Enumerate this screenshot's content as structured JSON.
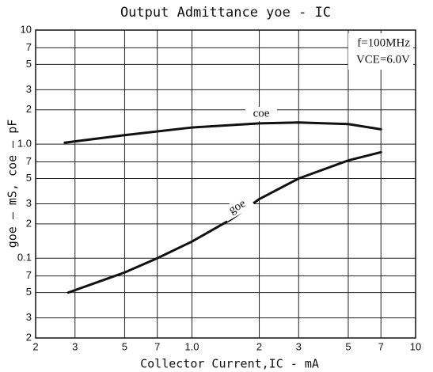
{
  "chart_data": {
    "type": "line",
    "title": "Output Admittance yoe - IC",
    "xlabel": "Collector Current,IC - mA",
    "ylabel": "goe — mS, coe — pF",
    "annotations": [
      "f=100MHz",
      "VCE=6.0V"
    ],
    "xlog": true,
    "ylog": true,
    "grid": true,
    "xlim": [
      0.2,
      10
    ],
    "ylim": [
      0.02,
      10
    ],
    "xticks": [
      {
        "value": 0.2,
        "label": "2"
      },
      {
        "value": 0.3,
        "label": "3"
      },
      {
        "value": 0.5,
        "label": "5"
      },
      {
        "value": 0.7,
        "label": "7"
      },
      {
        "value": 1,
        "label": "1.0"
      },
      2,
      3,
      5,
      7,
      10
    ],
    "yticks": [
      10,
      7,
      5,
      3,
      2,
      {
        "value": 1,
        "label": "1.0"
      },
      {
        "value": 0.7,
        "label": "7"
      },
      {
        "value": 0.5,
        "label": "5"
      },
      {
        "value": 0.3,
        "label": "3"
      },
      {
        "value": 0.2,
        "label": "2"
      },
      {
        "value": 0.1,
        "label": "0.1"
      },
      {
        "value": 0.07,
        "label": "7"
      },
      {
        "value": 0.05,
        "label": "5"
      },
      {
        "value": 0.03,
        "label": "3"
      },
      {
        "value": 0.02,
        "label": "2"
      }
    ],
    "series": [
      {
        "name": "coe",
        "color": "#111111",
        "x": [
          0.27,
          0.5,
          1.0,
          2,
          3,
          5,
          7
        ],
        "values": [
          1.03,
          1.2,
          1.4,
          1.52,
          1.55,
          1.5,
          1.35
        ]
      },
      {
        "name": "goe",
        "color": "#111111",
        "x": [
          0.28,
          0.5,
          0.7,
          1.0,
          1.5,
          2,
          3,
          5,
          7
        ],
        "values": [
          0.05,
          0.075,
          0.1,
          0.14,
          0.22,
          0.33,
          0.5,
          0.72,
          0.85
        ]
      }
    ]
  }
}
